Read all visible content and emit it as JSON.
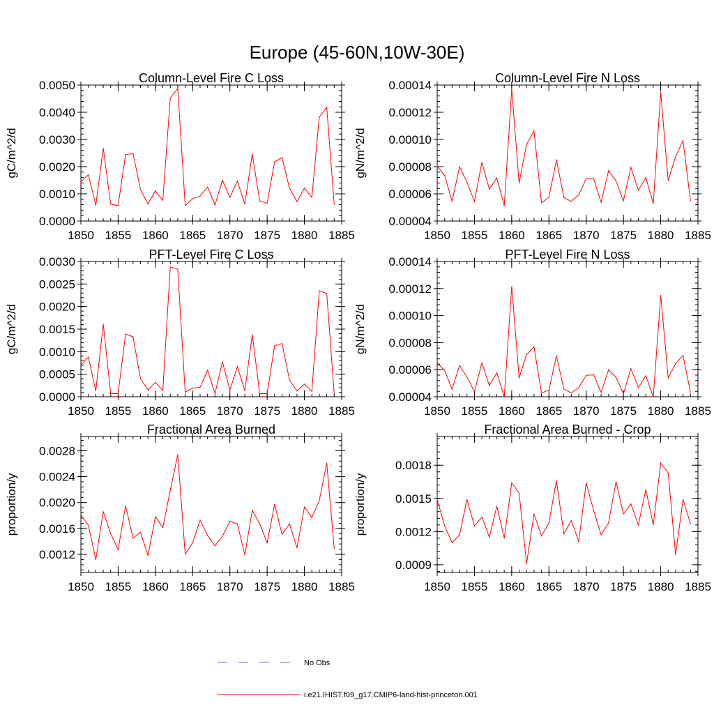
{
  "figure": {
    "title": "Europe (45-60N,10W-30E)"
  },
  "legend": {
    "entries": [
      {
        "label": "No Obs",
        "color": "#6a6acd",
        "dash": true
      },
      {
        "label": "i.e21.IHIST.f09_g17.CMIP6-land-hist-princeton.001",
        "color": "#ff0000",
        "dash": false
      }
    ]
  },
  "chart_data": [
    {
      "type": "line",
      "title": "Column-Level Fire C Loss",
      "xlabel": "",
      "ylabel": "gC/m^2/d",
      "xlim": [
        1850,
        1885
      ],
      "ylim": [
        0,
        0.005
      ],
      "xticks": [
        1850,
        1855,
        1860,
        1865,
        1870,
        1875,
        1880,
        1885
      ],
      "xtick_labels": [
        "1850",
        "1855",
        "1860",
        "1865",
        "1870",
        "1875",
        "1880",
        "1885"
      ],
      "yticks": [
        0,
        0.001,
        0.002,
        0.003,
        0.004,
        0.005
      ],
      "ytick_labels": [
        "0.0000",
        "0.0010",
        "0.0020",
        "0.0030",
        "0.0040",
        "0.0050"
      ],
      "series": [
        {
          "color": "#ff0000",
          "x": [
            1850,
            1851,
            1852,
            1853,
            1854,
            1855,
            1856,
            1857,
            1858,
            1859,
            1860,
            1861,
            1862,
            1863,
            1864,
            1865,
            1866,
            1867,
            1868,
            1869,
            1870,
            1871,
            1872,
            1873,
            1874,
            1875,
            1876,
            1877,
            1878,
            1879,
            1880,
            1881,
            1882,
            1883,
            1884
          ],
          "values": [
            0.00145,
            0.0017,
            0.00058,
            0.00268,
            0.00062,
            0.00057,
            0.00244,
            0.00248,
            0.00116,
            0.00063,
            0.00111,
            0.00076,
            0.00452,
            0.00488,
            0.00057,
            0.00082,
            0.00092,
            0.00125,
            0.00059,
            0.0015,
            0.00087,
            0.00147,
            0.00062,
            0.00246,
            0.00074,
            0.00065,
            0.00218,
            0.00233,
            0.00121,
            0.00071,
            0.00121,
            0.00087,
            0.00382,
            0.00418,
            0.00061
          ]
        }
      ]
    },
    {
      "type": "line",
      "title": "Column-Level Fire N Loss",
      "xlabel": "",
      "ylabel": "gN/m^2/d",
      "xlim": [
        1850,
        1885
      ],
      "ylim": [
        4e-05,
        0.00014
      ],
      "xticks": [
        1850,
        1855,
        1860,
        1865,
        1870,
        1875,
        1880,
        1885
      ],
      "xtick_labels": [
        "1850",
        "1855",
        "1860",
        "1865",
        "1870",
        "1875",
        "1880",
        "1885"
      ],
      "yticks": [
        4e-05,
        6e-05,
        8e-05,
        0.0001,
        0.00012,
        0.00014
      ],
      "ytick_labels": [
        "0.00004",
        "0.00006",
        "0.00008",
        "0.00010",
        "0.00012",
        "0.00014"
      ],
      "series": [
        {
          "color": "#ff0000",
          "x": [
            1850,
            1851,
            1852,
            1853,
            1854,
            1855,
            1856,
            1857,
            1858,
            1859,
            1860,
            1861,
            1862,
            1863,
            1864,
            1865,
            1866,
            1867,
            1868,
            1869,
            1870,
            1871,
            1872,
            1873,
            1874,
            1875,
            1876,
            1877,
            1878,
            1879,
            1880,
            1881,
            1882,
            1883,
            1884
          ],
          "values": [
            8.03e-05,
            7.36e-05,
            5.44e-05,
            7.99e-05,
            6.85e-05,
            5.44e-05,
            8.32e-05,
            6.34e-05,
            7.17e-05,
            5.13e-05,
            0.0001371,
            6.79e-05,
            9.65e-05,
            0.0001062,
            5.34e-05,
            5.75e-05,
            8.51e-05,
            5.73e-05,
            5.44e-05,
            5.93e-05,
            7.12e-05,
            7.12e-05,
            5.38e-05,
            7.71e-05,
            6.95e-05,
            5.48e-05,
            7.95e-05,
            6.27e-05,
            7.2e-05,
            5.28e-05,
            0.0001345,
            6.97e-05,
            8.76e-05,
            9.91e-05,
            5.48e-05
          ]
        }
      ]
    },
    {
      "type": "line",
      "title": "PFT-Level Fire C Loss",
      "xlabel": "",
      "ylabel": "gC/m^2/d",
      "xlim": [
        1850,
        1885
      ],
      "ylim": [
        0,
        0.003
      ],
      "xticks": [
        1850,
        1855,
        1860,
        1865,
        1870,
        1875,
        1880,
        1885
      ],
      "xtick_labels": [
        "1850",
        "1855",
        "1860",
        "1865",
        "1870",
        "1875",
        "1880",
        "1885"
      ],
      "yticks": [
        0,
        0.0005,
        0.001,
        0.0015,
        0.002,
        0.0025,
        0.003
      ],
      "ytick_labels": [
        "0.0000",
        "0.0005",
        "0.0010",
        "0.0015",
        "0.0020",
        "0.0025",
        "0.0030"
      ],
      "series": [
        {
          "color": "#ff0000",
          "x": [
            1850,
            1851,
            1852,
            1853,
            1854,
            1855,
            1856,
            1857,
            1858,
            1859,
            1860,
            1861,
            1862,
            1863,
            1864,
            1865,
            1866,
            1867,
            1868,
            1869,
            1870,
            1871,
            1872,
            1873,
            1874,
            1875,
            1876,
            1877,
            1878,
            1879,
            1880,
            1881,
            1882,
            1883,
            1884
          ],
          "values": [
            0.0007,
            0.00088,
            0.00013,
            0.00161,
            7e-05,
            7e-05,
            0.00139,
            0.00133,
            0.0004,
            0.00015,
            0.00032,
            0.00014,
            0.00288,
            0.00283,
            0.0001,
            0.00019,
            0.00021,
            0.00059,
            7e-05,
            0.00077,
            0.00015,
            0.00067,
            0.00013,
            0.00138,
            7e-05,
            7e-05,
            0.00113,
            0.00118,
            0.00037,
            0.00013,
            0.00028,
            0.00012,
            0.00235,
            0.00229,
            7e-05
          ]
        }
      ]
    },
    {
      "type": "line",
      "title": "PFT-Level Fire N Loss",
      "xlabel": "",
      "ylabel": "gN/m^2/d",
      "xlim": [
        1850,
        1885
      ],
      "ylim": [
        4e-05,
        0.00014
      ],
      "xticks": [
        1850,
        1855,
        1860,
        1865,
        1870,
        1875,
        1880,
        1885
      ],
      "xtick_labels": [
        "1850",
        "1855",
        "1860",
        "1865",
        "1870",
        "1875",
        "1880",
        "1885"
      ],
      "yticks": [
        4e-05,
        6e-05,
        8e-05,
        0.0001,
        0.00012,
        0.00014
      ],
      "ytick_labels": [
        "0.00004",
        "0.00006",
        "0.00008",
        "0.00010",
        "0.00012",
        "0.00014"
      ],
      "series": [
        {
          "color": "#ff0000",
          "x": [
            1850,
            1851,
            1852,
            1853,
            1854,
            1855,
            1856,
            1857,
            1858,
            1859,
            1860,
            1861,
            1862,
            1863,
            1864,
            1865,
            1866,
            1867,
            1868,
            1869,
            1870,
            1871,
            1872,
            1873,
            1874,
            1875,
            1876,
            1877,
            1878,
            1879,
            1880,
            1881,
            1882,
            1883,
            1884
          ],
          "values": [
            6.52e-05,
            5.93e-05,
            4.56e-05,
            6.32e-05,
            5.46e-05,
            4.36e-05,
            6.5e-05,
            4.83e-05,
            5.77e-05,
            3.99e-05,
            0.0001216,
            5.38e-05,
            7.13e-05,
            7.69e-05,
            4.27e-05,
            4.5e-05,
            7.03e-05,
            4.56e-05,
            4.28e-05,
            4.68e-05,
            5.58e-05,
            5.62e-05,
            4.32e-05,
            5.99e-05,
            5.44e-05,
            4.22e-05,
            6.08e-05,
            4.68e-05,
            5.55e-05,
            3.99e-05,
            0.000115,
            5.38e-05,
            6.45e-05,
            7.05e-05,
            4.32e-05
          ]
        }
      ]
    },
    {
      "type": "line",
      "title": "Fractional Area Burned",
      "xlabel": "",
      "ylabel": "proportion/y",
      "xlim": [
        1850,
        1885
      ],
      "ylim": [
        0.00092,
        0.00302
      ],
      "xticks": [
        1850,
        1855,
        1860,
        1865,
        1870,
        1875,
        1880,
        1885
      ],
      "xtick_labels": [
        "1850",
        "1855",
        "1860",
        "1865",
        "1870",
        "1875",
        "1880",
        "1885"
      ],
      "yticks": [
        0.0012,
        0.0016,
        0.002,
        0.0024,
        0.0028
      ],
      "ytick_labels": [
        "0.0012",
        "0.0016",
        "0.0020",
        "0.0024",
        "0.0028"
      ],
      "series": [
        {
          "color": "#ff0000",
          "x": [
            1850,
            1851,
            1852,
            1853,
            1854,
            1855,
            1856,
            1857,
            1858,
            1859,
            1860,
            1861,
            1862,
            1863,
            1864,
            1865,
            1866,
            1867,
            1868,
            1869,
            1870,
            1871,
            1872,
            1873,
            1874,
            1875,
            1876,
            1877,
            1878,
            1879,
            1880,
            1881,
            1882,
            1883,
            1884
          ],
          "values": [
            0.00181,
            0.00165,
            0.00112,
            0.00186,
            0.00152,
            0.00127,
            0.00195,
            0.00145,
            0.00154,
            0.00118,
            0.00178,
            0.00161,
            0.00219,
            0.00274,
            0.0012,
            0.00138,
            0.00173,
            0.00149,
            0.00133,
            0.00148,
            0.00171,
            0.00167,
            0.00119,
            0.00188,
            0.00167,
            0.00138,
            0.00197,
            0.00151,
            0.00167,
            0.0013,
            0.00193,
            0.00177,
            0.00203,
            0.00261,
            0.00129
          ]
        }
      ]
    },
    {
      "type": "line",
      "title": "Fractional Area Burned - Crop",
      "xlabel": "",
      "ylabel": "proportion/y",
      "xlim": [
        1850,
        1885
      ],
      "ylim": [
        0.00083,
        0.00206
      ],
      "xticks": [
        1850,
        1855,
        1860,
        1865,
        1870,
        1875,
        1880,
        1885
      ],
      "xtick_labels": [
        "1850",
        "1855",
        "1860",
        "1865",
        "1870",
        "1875",
        "1880",
        "1885"
      ],
      "yticks": [
        0.0009,
        0.0012,
        0.0015,
        0.0018
      ],
      "ytick_labels": [
        "0.0009",
        "0.0012",
        "0.0015",
        "0.0018"
      ],
      "series": [
        {
          "color": "#ff0000",
          "x": [
            1850,
            1851,
            1852,
            1853,
            1854,
            1855,
            1856,
            1857,
            1858,
            1859,
            1860,
            1861,
            1862,
            1863,
            1864,
            1865,
            1866,
            1867,
            1868,
            1869,
            1870,
            1871,
            1872,
            1873,
            1874,
            1875,
            1876,
            1877,
            1878,
            1879,
            1880,
            1881,
            1882,
            1883,
            1884
          ],
          "values": [
            0.00149,
            0.00125,
            0.0011,
            0.00117,
            0.00149,
            0.00125,
            0.00133,
            0.00115,
            0.00143,
            0.00114,
            0.00164,
            0.00155,
            0.00091,
            0.00136,
            0.00116,
            0.00128,
            0.00166,
            0.00118,
            0.0013,
            0.00111,
            0.00164,
            0.00139,
            0.00117,
            0.00128,
            0.00165,
            0.00136,
            0.00145,
            0.00126,
            0.00158,
            0.00126,
            0.00182,
            0.00173,
            0.00099,
            0.00149,
            0.00127
          ]
        }
      ]
    }
  ]
}
